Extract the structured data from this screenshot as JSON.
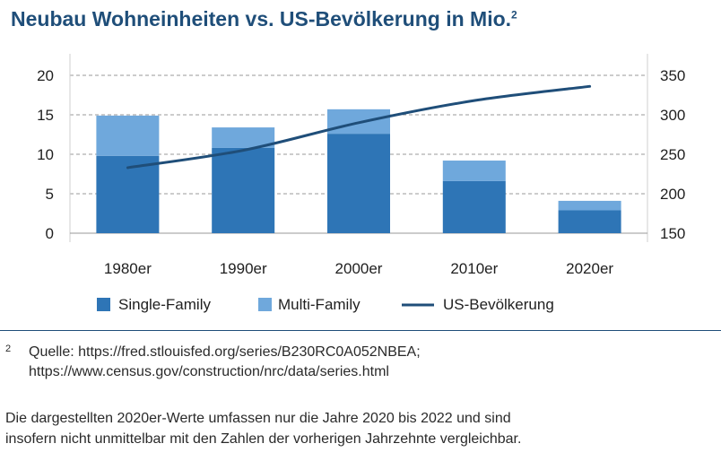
{
  "title": "Neubau Wohneinheiten vs. US-Bevölkerung in Mio.",
  "title_sup": "2",
  "chart_data": {
    "type": "bar",
    "categories": [
      "1980er",
      "1990er",
      "2000er",
      "2010er",
      "2020er"
    ],
    "series": [
      {
        "name": "Single-Family",
        "type": "stacked-bar",
        "axis": "left",
        "color": "#2e75b6",
        "values": [
          9.8,
          10.8,
          12.6,
          6.6,
          2.9
        ]
      },
      {
        "name": "Multi-Family",
        "type": "stacked-bar",
        "axis": "left",
        "color": "#6fa8dc",
        "values": [
          5.1,
          2.6,
          3.1,
          2.6,
          1.2
        ]
      },
      {
        "name": "US-Bevölkerung",
        "type": "line",
        "axis": "right",
        "color": "#1f4e79",
        "values": [
          233,
          255,
          290,
          318,
          336
        ]
      }
    ],
    "y_left": {
      "ticks": [
        0,
        5,
        10,
        15,
        20
      ],
      "range": [
        0,
        23
      ]
    },
    "y_right": {
      "ticks": [
        150,
        200,
        250,
        300,
        350
      ],
      "range": [
        150,
        380
      ]
    },
    "grid": "dashed horizontal",
    "legend_position": "bottom"
  },
  "footnote": {
    "mark": "2",
    "line1": "Quelle: https://fred.stlouisfed.org/series/B230RC0A052NBEA;",
    "line2": "https://www.census.gov/construction/nrc/data/series.html"
  },
  "disclaimer": {
    "line1": "Die dargestellten 2020er-Werte umfassen nur die Jahre 2020 bis 2022 und sind",
    "line2": "insofern nicht unmittelbar mit den Zahlen der vorherigen Jahrzehnte vergleichbar."
  }
}
